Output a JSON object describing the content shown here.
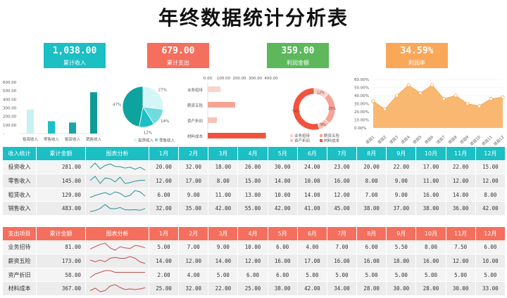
{
  "title": "年终数据统计分析表",
  "kpis": [
    {
      "value": "1,038.00",
      "label": "累计收入",
      "color": "#1bbfc4"
    },
    {
      "value": "679.00",
      "label": "累计支出",
      "color": "#f46f5e"
    },
    {
      "value": "359.00",
      "label": "利润金额",
      "color": "#5db85c"
    },
    {
      "value": "34.59%",
      "label": "利润率",
      "color": "#f9a85a"
    }
  ],
  "colors": {
    "income": "#1bbfc4",
    "expense": "#f46f5e",
    "profit": "#5db85c",
    "rate": "#f9a85a"
  },
  "charts": {
    "income_bar": {
      "type": "bar",
      "y_ticks": [
        "600.00",
        "500.00",
        "400.00",
        "300.00",
        "200.00",
        "100.00",
        "-"
      ],
      "ylim": [
        0,
        600
      ],
      "categories": [
        "投资收入",
        "零售收入",
        "租赁收入",
        "销售收入"
      ],
      "values": [
        281,
        145,
        129,
        483
      ]
    },
    "income_pie": {
      "type": "pie",
      "labels": [
        "投资收入",
        "零售收入",
        "租赁收入",
        "销售收入"
      ],
      "values": [
        27,
        14,
        12,
        47
      ],
      "pct_labels": [
        "27%",
        "14%",
        "12%",
        "47%"
      ],
      "legend": [
        "投资收入",
        "零售收入"
      ]
    },
    "expense_hbar": {
      "type": "bar",
      "x_ticks": [
        "0.00",
        "100.00",
        "200.00",
        "300.00",
        "400.00"
      ],
      "xlim": [
        0,
        400
      ],
      "categories": [
        "业务招待",
        "薪资五险",
        "资产折旧",
        "材料成本"
      ],
      "values": [
        81,
        173,
        58,
        367
      ]
    },
    "expense_donut": {
      "type": "pie",
      "labels": [
        "业务招待",
        "薪资五险",
        "资产折旧",
        "材料成本"
      ],
      "values": [
        12,
        25,
        9,
        54
      ],
      "pct_labels": [
        "12%",
        "25%",
        "9%",
        "54%"
      ]
    },
    "rate_area": {
      "type": "area",
      "y_ticks": [
        "60.00%",
        "50.00%",
        "40.00%",
        "30.00%",
        "20.00%",
        "10.00%",
        "0.00%"
      ],
      "ylim": [
        0,
        60
      ],
      "categories": [
        "项目1",
        "项目2",
        "项目3",
        "项目4",
        "项目5",
        "项目6",
        "项目7",
        "项目8",
        "项目9",
        "项目10",
        "项目11",
        "项目12"
      ],
      "values": [
        33,
        23,
        40,
        53,
        43,
        53,
        36,
        40,
        30,
        27,
        36,
        38
      ]
    }
  },
  "months": [
    "1月",
    "2月",
    "3月",
    "4月",
    "5月",
    "6月",
    "7月",
    "8月",
    "9月",
    "10月",
    "11月",
    "12月"
  ],
  "income_table": {
    "headers": [
      "收入统计",
      "累计金额",
      "图表分析"
    ],
    "rows": [
      {
        "name": "投资收入",
        "total": "281.00",
        "values": [
          "20.00",
          "32.00",
          "18.00",
          "26.00",
          "30.00",
          "24.00",
          "23.00",
          "20.00",
          "22.00",
          "17.00",
          "22.00",
          "15.00"
        ]
      },
      {
        "name": "零售收入",
        "total": "145.00",
        "values": [
          "12.00",
          "17.00",
          "8.00",
          "15.00",
          "14.00",
          "10.00",
          "16.00",
          "8.00",
          "9.00",
          "11.00",
          "12.00",
          "12.00"
        ]
      },
      {
        "name": "租赁收入",
        "total": "129.00",
        "values": [
          "6.00",
          "9.00",
          "11.00",
          "13.00",
          "10.00",
          "14.00",
          "12.00",
          "7.00",
          "9.00",
          "16.00",
          "14.00",
          "8.00"
        ]
      },
      {
        "name": "销售收入",
        "total": "483.00",
        "values": [
          "32.00",
          "35.00",
          "42.00",
          "55.00",
          "42.00",
          "41.00",
          "45.00",
          "38.00",
          "37.00",
          "38.00",
          "36.00",
          "42.00"
        ]
      }
    ]
  },
  "expense_table": {
    "headers": [
      "支出项目",
      "累计金额",
      "图表分析"
    ],
    "rows": [
      {
        "name": "业务招待",
        "total": "81.00",
        "values": [
          "5.00",
          "7.00",
          "9.00",
          "10.00",
          "6.00",
          "4.00",
          "7.00",
          "6.00",
          "5.50",
          "8.00",
          "7.50",
          "6.00"
        ]
      },
      {
        "name": "薪资五险",
        "total": "173.00",
        "values": [
          "14.00",
          "12.00",
          "14.00",
          "12.00",
          "16.00",
          "17.00",
          "16.00",
          "16.00",
          "18.00",
          "16.00",
          "12.00",
          "10.00"
        ]
      },
      {
        "name": "资产折旧",
        "total": "58.00",
        "values": [
          "2.00",
          "4.00",
          "5.00",
          "6.00",
          "6.00",
          "5.00",
          "5.00",
          "5.00",
          "5.00",
          "5.00",
          "5.00",
          "5.00"
        ]
      },
      {
        "name": "材料成本",
        "total": "367.00",
        "values": [
          "25.00",
          "32.00",
          "22.00",
          "25.00",
          "38.00",
          "42.00",
          "34.00",
          "28.00",
          "30.00",
          "28.00",
          "30.00",
          "33.00"
        ]
      }
    ]
  }
}
